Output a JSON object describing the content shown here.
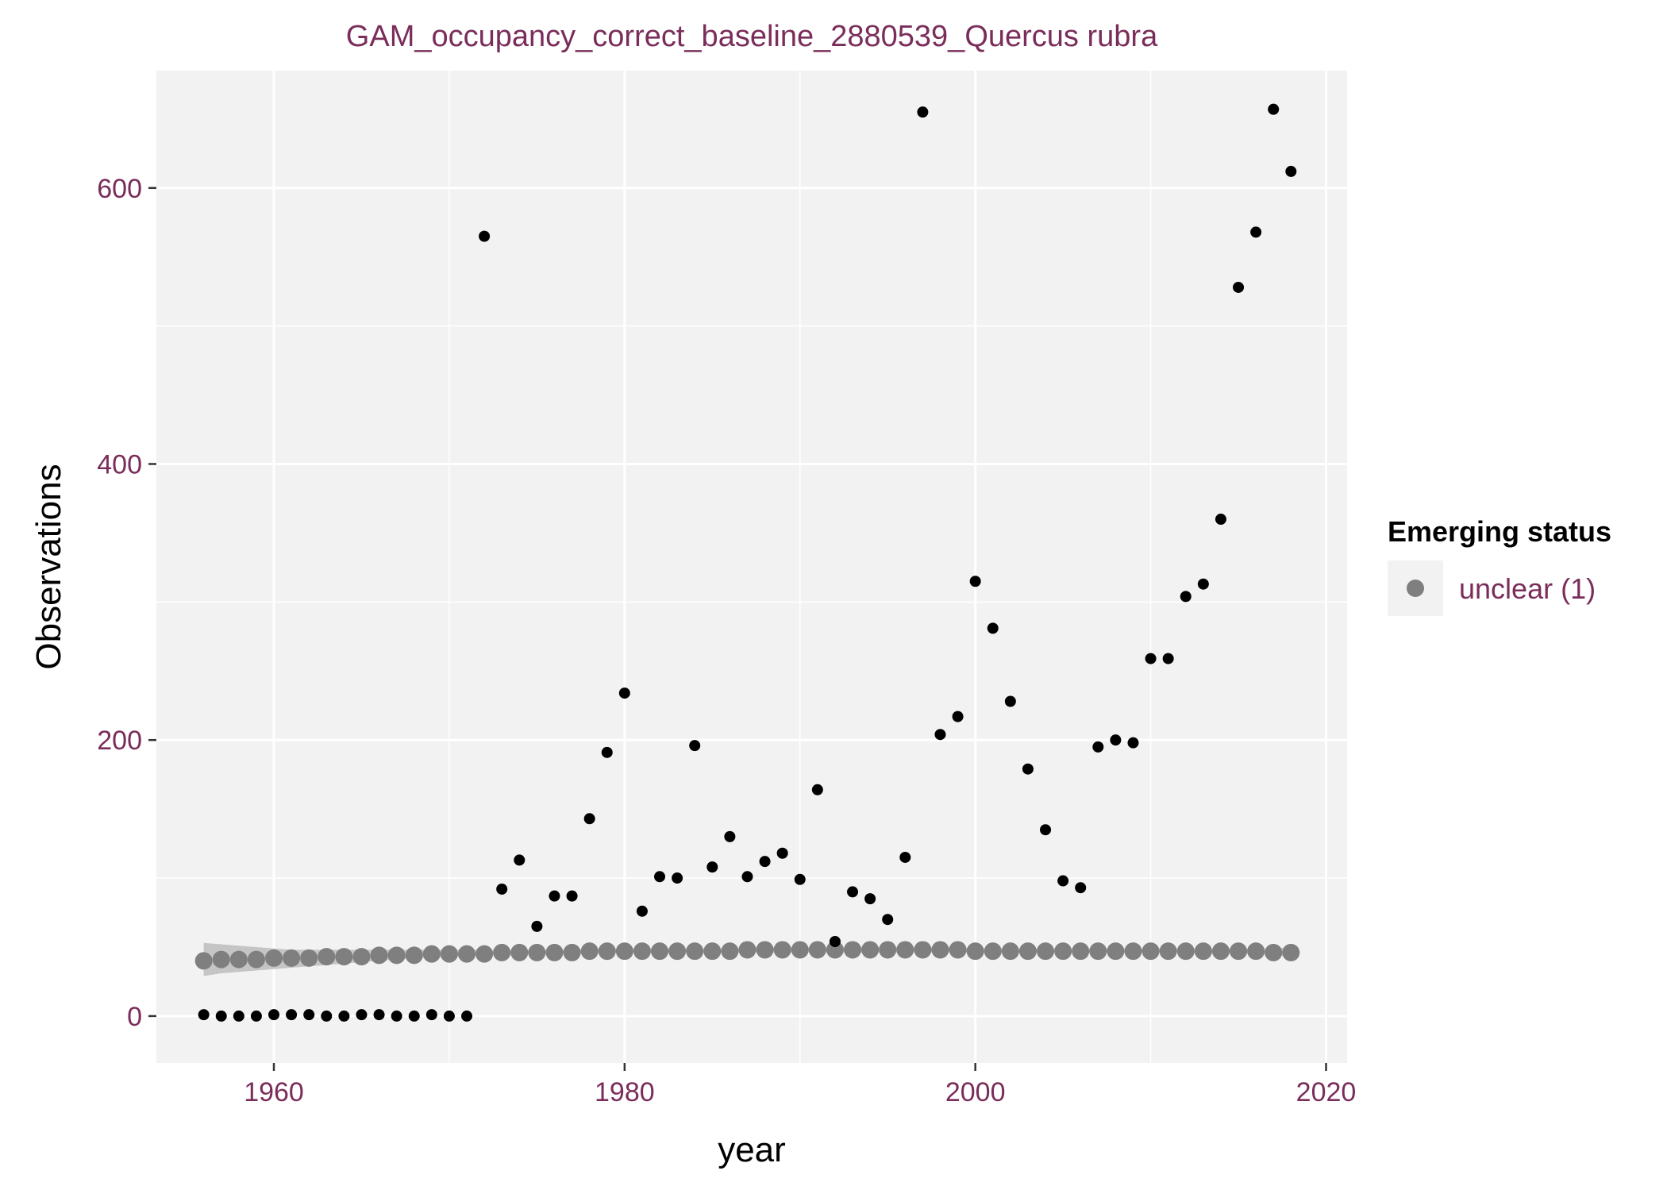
{
  "colors": {
    "panel_bg": "#f2f2f2",
    "grid": "#ffffff",
    "text_accent": "#7a2d5a",
    "tick": "#333333",
    "obs_point": "#000000",
    "fit_point": "#7f7f7f",
    "ribbon": "#bdbdbd"
  },
  "chart_data": {
    "type": "scatter",
    "title": "GAM_occupancy_correct_baseline_2880539_Quercus rubra",
    "xlabel": "year",
    "ylabel": "Observations",
    "xlim": [
      1953.3,
      2021.2
    ],
    "ylim": [
      -34,
      685
    ],
    "x_ticks": [
      1960,
      1980,
      2000,
      2020
    ],
    "y_ticks": [
      0,
      200,
      400,
      600
    ],
    "grid": true,
    "legend": {
      "title": "Emerging status",
      "position": "right",
      "entries": [
        {
          "label": "unclear (1)",
          "color": "#7f7f7f"
        }
      ]
    },
    "series": [
      {
        "name": "observations",
        "x": [
          1956,
          1957,
          1958,
          1959,
          1960,
          1961,
          1962,
          1963,
          1964,
          1965,
          1966,
          1967,
          1968,
          1969,
          1970,
          1971,
          1972,
          1973,
          1974,
          1975,
          1976,
          1977,
          1978,
          1979,
          1980,
          1981,
          1982,
          1983,
          1984,
          1985,
          1986,
          1987,
          1988,
          1989,
          1990,
          1991,
          1992,
          1993,
          1994,
          1995,
          1996,
          1997,
          1998,
          1999,
          2000,
          2001,
          2002,
          2003,
          2004,
          2005,
          2006,
          2007,
          2008,
          2009,
          2010,
          2011,
          2012,
          2013,
          2014,
          2015,
          2016,
          2017,
          2018
        ],
        "values": [
          1,
          0,
          0,
          0,
          1,
          1,
          1,
          0,
          0,
          1,
          1,
          0,
          0,
          1,
          0,
          0,
          565,
          92,
          113,
          65,
          87,
          87,
          143,
          191,
          234,
          76,
          101,
          100,
          196,
          108,
          130,
          101,
          112,
          118,
          99,
          164,
          54,
          90,
          85,
          70,
          115,
          655,
          204,
          217,
          315,
          281,
          228,
          179,
          135,
          98,
          93,
          195,
          200,
          198,
          259,
          259,
          304,
          313,
          360,
          528,
          568,
          657,
          612
        ]
      },
      {
        "name": "fitted (unclear (1))",
        "x": [
          1956,
          1957,
          1958,
          1959,
          1960,
          1961,
          1962,
          1963,
          1964,
          1965,
          1966,
          1967,
          1968,
          1969,
          1970,
          1971,
          1972,
          1973,
          1974,
          1975,
          1976,
          1977,
          1978,
          1979,
          1980,
          1981,
          1982,
          1983,
          1984,
          1985,
          1986,
          1987,
          1988,
          1989,
          1990,
          1991,
          1992,
          1993,
          1994,
          1995,
          1996,
          1997,
          1998,
          1999,
          2000,
          2001,
          2002,
          2003,
          2004,
          2005,
          2006,
          2007,
          2008,
          2009,
          2010,
          2011,
          2012,
          2013,
          2014,
          2015,
          2016,
          2017,
          2018
        ],
        "values": [
          40,
          41,
          41,
          41,
          42,
          42,
          42,
          43,
          43,
          43,
          44,
          44,
          44,
          45,
          45,
          45,
          45,
          46,
          46,
          46,
          46,
          46,
          47,
          47,
          47,
          47,
          47,
          47,
          47,
          47,
          47,
          48,
          48,
          48,
          48,
          48,
          48,
          48,
          48,
          48,
          48,
          48,
          48,
          48,
          47,
          47,
          47,
          47,
          47,
          47,
          47,
          47,
          47,
          47,
          47,
          47,
          47,
          47,
          47,
          47,
          47,
          46,
          46
        ],
        "ribbon_lower": [
          29,
          31,
          32,
          33,
          34,
          35,
          36,
          37,
          38,
          39,
          40,
          41,
          42,
          42,
          43,
          43,
          44,
          44,
          44,
          45,
          45,
          45,
          45,
          46,
          46,
          46,
          46,
          46,
          46,
          46,
          46,
          46,
          46,
          46,
          46,
          46,
          46,
          46,
          46,
          46,
          46,
          46,
          46,
          46,
          46,
          46,
          46,
          46,
          46,
          46,
          46,
          46,
          46,
          46,
          46,
          46,
          46,
          45,
          45,
          45,
          45,
          44,
          43
        ],
        "ribbon_upper": [
          53,
          52,
          51,
          50,
          49,
          48,
          48,
          48,
          48,
          48,
          48,
          48,
          48,
          48,
          48,
          48,
          48,
          48,
          48,
          48,
          48,
          48,
          49,
          49,
          49,
          49,
          49,
          49,
          49,
          49,
          49,
          50,
          50,
          50,
          50,
          50,
          50,
          50,
          50,
          50,
          50,
          50,
          50,
          50,
          49,
          49,
          49,
          49,
          49,
          49,
          49,
          49,
          49,
          49,
          49,
          49,
          49,
          49,
          49,
          49,
          49,
          49,
          50
        ]
      }
    ]
  }
}
